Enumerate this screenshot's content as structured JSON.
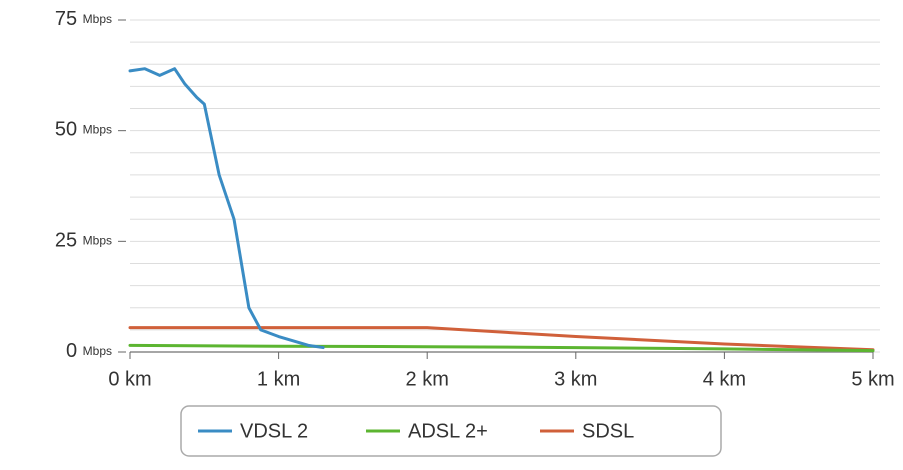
{
  "chart_data": {
    "type": "line",
    "xlim": [
      0,
      5
    ],
    "xticks": [
      {
        "value": 0,
        "label": "0 km"
      },
      {
        "value": 1,
        "label": "1 km"
      },
      {
        "value": 2,
        "label": "2 km"
      },
      {
        "value": 3,
        "label": "3 km"
      },
      {
        "value": 4,
        "label": "4 km"
      },
      {
        "value": 5,
        "label": "5 km"
      }
    ],
    "ylim": [
      0,
      75
    ],
    "yticks": [
      {
        "value": 0,
        "label": "0 Mbps"
      },
      {
        "value": 25,
        "label": "25 Mbps"
      },
      {
        "value": 50,
        "label": "50 Mbps"
      },
      {
        "value": 75,
        "label": "75 Mbps"
      }
    ],
    "minor_grid": [
      5,
      10,
      15,
      20,
      30,
      35,
      40,
      45,
      55,
      60,
      65,
      70
    ],
    "grid": true,
    "legend": "bottom",
    "series": [
      {
        "name": "VDSL 2",
        "color": "#3a8cc4",
        "x": [
          0,
          0.1,
          0.2,
          0.3,
          0.37,
          0.45,
          0.5,
          0.6,
          0.7,
          0.75,
          0.8,
          0.88,
          1.0,
          1.2,
          1.3
        ],
        "values": [
          63.5,
          64,
          62.5,
          64,
          60.5,
          57.5,
          56,
          40,
          30,
          20,
          10,
          5,
          3.5,
          1.5,
          1
        ]
      },
      {
        "name": "ADSL 2+",
        "color": "#5cb531",
        "x": [
          0,
          1,
          2,
          3,
          4,
          5
        ],
        "values": [
          1.5,
          1.3,
          1.2,
          1,
          0.7,
          0.3
        ]
      },
      {
        "name": "SDSL",
        "color": "#d0603a",
        "x": [
          0,
          1,
          2,
          3,
          4,
          5
        ],
        "values": [
          5.5,
          5.5,
          5.5,
          3.5,
          1.8,
          0.5
        ]
      }
    ]
  }
}
